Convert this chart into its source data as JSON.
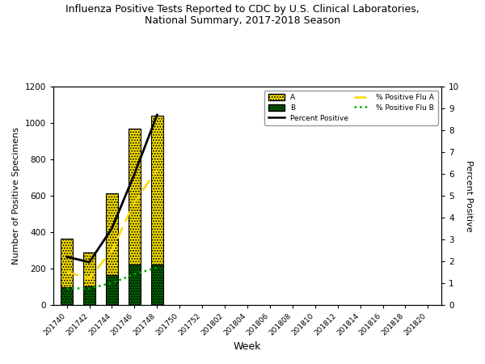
{
  "weeks": [
    "201740",
    "201742",
    "201744",
    "201746",
    "201748",
    "201750",
    "201752",
    "201802",
    "201804",
    "201806",
    "201808",
    "201810",
    "201812",
    "201814",
    "201816",
    "201818",
    "201820"
  ],
  "flu_a": [
    270,
    190,
    450,
    750,
    820,
    0,
    0,
    0,
    0,
    0,
    0,
    0,
    0,
    0,
    0,
    0,
    0
  ],
  "flu_b": [
    95,
    100,
    165,
    220,
    220,
    0,
    0,
    0,
    0,
    0,
    0,
    0,
    0,
    0,
    0,
    0,
    0
  ],
  "pct_positive": [
    2.2,
    1.95,
    3.5,
    6.0,
    8.7,
    0,
    0,
    0,
    0,
    0,
    0,
    0,
    0,
    0,
    0,
    0,
    0
  ],
  "pct_flu_a": [
    1.5,
    1.2,
    2.5,
    4.7,
    6.2,
    0,
    0,
    0,
    0,
    0,
    0,
    0,
    0,
    0,
    0,
    0,
    0
  ],
  "pct_flu_b": [
    0.75,
    0.75,
    1.0,
    1.4,
    1.7,
    0,
    0,
    0,
    0,
    0,
    0,
    0,
    0,
    0,
    0,
    0,
    0
  ],
  "n_data": 5,
  "title": "Influenza Positive Tests Reported to CDC by U.S. Clinical Laboratories,\nNational Summary, 2017-2018 Season",
  "xlabel": "Week",
  "ylabel_left": "Number of Positive Specimens",
  "ylabel_right": "Percent Positive",
  "ylim_left": [
    0,
    1200
  ],
  "ylim_right": [
    0,
    10
  ],
  "yticks_left": [
    0,
    200,
    400,
    600,
    800,
    1000,
    1200
  ],
  "yticks_right": [
    0,
    1,
    2,
    3,
    4,
    5,
    6,
    7,
    8,
    9,
    10
  ],
  "color_a": "#FFE800",
  "color_b": "#006400",
  "color_pct": "#000000",
  "color_pct_a": "#FFD700",
  "color_pct_b": "#00AA00",
  "bar_edgecolor": "#000000",
  "background": "#FFFFFF"
}
